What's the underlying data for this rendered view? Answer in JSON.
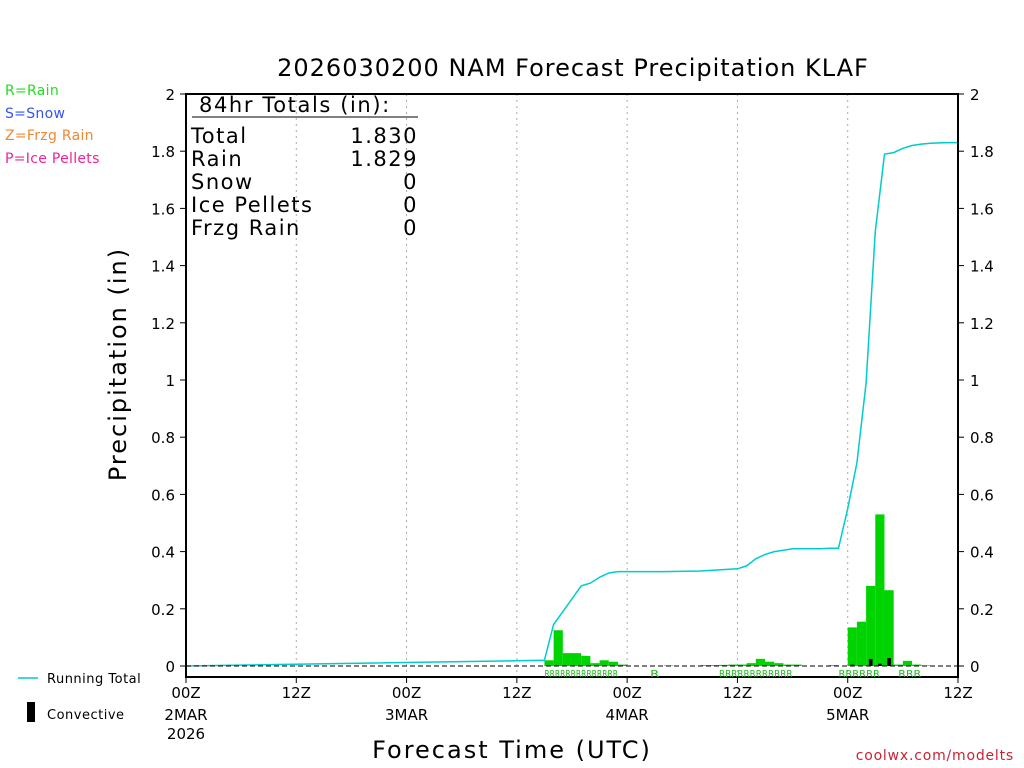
{
  "chart_data": {
    "type": "bar",
    "title": "2026030200 NAM Forecast Precipitation KLAF",
    "xlabel": "Forecast Time (UTC)",
    "ylabel": "Precipitation (in)",
    "ylim": [
      0,
      2
    ],
    "y_ticks": [
      "0",
      "0.2",
      "0.4",
      "0.6",
      "0.8",
      "1",
      "1.2",
      "1.4",
      "1.6",
      "1.8",
      "2"
    ],
    "x_range_hours": [
      0,
      84
    ],
    "x_ticks": [
      {
        "hour": 0,
        "label": "00Z",
        "date": "2MAR",
        "year": "2026"
      },
      {
        "hour": 12,
        "label": "12Z",
        "date": "",
        "year": ""
      },
      {
        "hour": 24,
        "label": "00Z",
        "date": "3MAR",
        "year": ""
      },
      {
        "hour": 36,
        "label": "12Z",
        "date": "",
        "year": ""
      },
      {
        "hour": 48,
        "label": "00Z",
        "date": "4MAR",
        "year": ""
      },
      {
        "hour": 60,
        "label": "12Z",
        "date": "",
        "year": ""
      },
      {
        "hour": 72,
        "label": "00Z",
        "date": "5MAR",
        "year": ""
      },
      {
        "hour": 84,
        "label": "12Z",
        "date": "",
        "year": ""
      }
    ],
    "totals": {
      "heading": "84hr Totals (in):",
      "rows": [
        {
          "label": "Total",
          "value": "1.830"
        },
        {
          "label": "Rain",
          "value": "1.829"
        },
        {
          "label": "Snow",
          "value": "0"
        },
        {
          "label": "Ice Pellets",
          "value": "0"
        },
        {
          "label": "Frzg Rain",
          "value": "0"
        }
      ]
    },
    "type_legend": [
      {
        "text": "R=Rain",
        "color": "#22dd22"
      },
      {
        "text": "S=Snow",
        "color": "#3355ee"
      },
      {
        "text": "Z=Frzg Rain",
        "color": "#ee8833"
      },
      {
        "text": "P=Ice Pellets",
        "color": "#ee2299"
      }
    ],
    "series": [
      {
        "name": "Rain",
        "color": "#00d400",
        "bars": [
          {
            "start": 39,
            "value": 0.02
          },
          {
            "start": 40,
            "value": 0.125
          },
          {
            "start": 41,
            "value": 0.045
          },
          {
            "start": 42,
            "value": 0.045
          },
          {
            "start": 43,
            "value": 0.035
          },
          {
            "start": 44,
            "value": 0.01
          },
          {
            "start": 45,
            "value": 0.02
          },
          {
            "start": 46,
            "value": 0.015
          },
          {
            "start": 47,
            "value": 0.005
          },
          {
            "start": 52,
            "value": 0.002
          },
          {
            "start": 56,
            "value": 0.003
          },
          {
            "start": 57,
            "value": 0.003
          },
          {
            "start": 58,
            "value": 0.004
          },
          {
            "start": 59,
            "value": 0.005
          },
          {
            "start": 60,
            "value": 0.005
          },
          {
            "start": 61,
            "value": 0.01
          },
          {
            "start": 62,
            "value": 0.025
          },
          {
            "start": 63,
            "value": 0.015
          },
          {
            "start": 64,
            "value": 0.01
          },
          {
            "start": 65,
            "value": 0.005
          },
          {
            "start": 66,
            "value": 0.005
          },
          {
            "start": 70,
            "value": 0.003
          },
          {
            "start": 72,
            "value": 0.135
          },
          {
            "start": 73,
            "value": 0.155
          },
          {
            "start": 74,
            "value": 0.28
          },
          {
            "start": 75,
            "value": 0.53
          },
          {
            "start": 76,
            "value": 0.265
          },
          {
            "start": 77,
            "value": 0.005
          },
          {
            "start": 78,
            "value": 0.018
          },
          {
            "start": 79,
            "value": 0.005
          },
          {
            "start": 80,
            "value": 0.002
          }
        ]
      },
      {
        "name": "Convective",
        "color": "#000000",
        "bars": [
          {
            "start": 72,
            "value": 0.005
          },
          {
            "start": 74,
            "value": 0.025
          },
          {
            "start": 75,
            "value": 0.008
          },
          {
            "start": 76,
            "value": 0.028
          }
        ]
      },
      {
        "name": "Running Total",
        "color": "#00cccc",
        "type": "line",
        "x": [
          0,
          39,
          40,
          41,
          42,
          43,
          44,
          45,
          46,
          47,
          48,
          50,
          52,
          56,
          58,
          60,
          61,
          62,
          63,
          64,
          65,
          66,
          67,
          68,
          69,
          70,
          71,
          72,
          73,
          74,
          75,
          76,
          77,
          78,
          79,
          80,
          81,
          82,
          83,
          84
        ],
        "values": [
          0,
          0.02,
          0.145,
          0.19,
          0.235,
          0.28,
          0.29,
          0.31,
          0.325,
          0.33,
          0.33,
          0.33,
          0.33,
          0.332,
          0.336,
          0.34,
          0.35,
          0.375,
          0.39,
          0.4,
          0.405,
          0.41,
          0.41,
          0.41,
          0.41,
          0.412,
          0.412,
          0.55,
          0.71,
          0.99,
          1.52,
          1.79,
          1.795,
          1.81,
          1.82,
          1.825,
          1.828,
          1.829,
          1.83,
          1.83
        ]
      }
    ],
    "ptype_strips": [
      {
        "start": 39,
        "end": 47,
        "text": "RRRRRRRRRRRRRR"
      },
      {
        "start": 50.5,
        "end": 51.5,
        "text": "R"
      },
      {
        "start": 58,
        "end": 66,
        "text": "RRRRRRRRRRRR"
      },
      {
        "start": 71,
        "end": 75.5,
        "text": "RRRRRR"
      },
      {
        "start": 77.5,
        "end": 80,
        "text": "RRR"
      }
    ],
    "bottom_legend": {
      "running_total": "Running Total",
      "convective": "Convective"
    },
    "watermark": "coolwx.com/modelts"
  }
}
